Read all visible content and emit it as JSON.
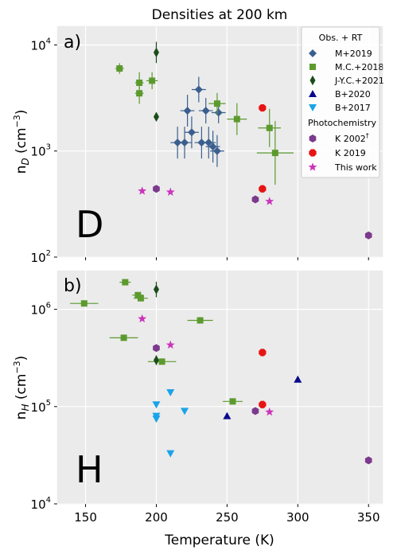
{
  "figure": {
    "title": "Densities at 200 km",
    "xlabel": "Temperature (K)"
  },
  "chart_data": [
    {
      "type": "scatter",
      "panel_label": "a)",
      "species_label": "D",
      "ylabel_main": "n",
      "ylabel_sub": "D",
      "ylabel_unit": " (cm",
      "ylabel_exp": "−3",
      "ylabel_close": ")",
      "xlim": [
        130,
        360
      ],
      "ylim": [
        100,
        15000
      ],
      "yscale": "log",
      "x_ticks": [
        150,
        200,
        250,
        300,
        350
      ],
      "y_ticks": [
        {
          "base": "10",
          "exp": "2",
          "value": 100
        },
        {
          "base": "10",
          "exp": "3",
          "value": 1000
        },
        {
          "base": "10",
          "exp": "4",
          "value": 10000
        }
      ],
      "grid": true,
      "legend_position": "top-right",
      "legend": {
        "group1_title": "Obs. + RT",
        "group2_title": "Photochemistry",
        "k2002_label": "K 2002",
        "k2002_sup": "†"
      },
      "series": [
        {
          "name": "M+2019",
          "marker": "diamond",
          "color": "#3a5f8f",
          "points": [
            {
              "x": 215,
              "y": 1200,
              "xerr": 5,
              "yerr": 0.15
            },
            {
              "x": 220,
              "y": 1200,
              "xerr": 5,
              "yerr": 0.15
            },
            {
              "x": 222,
              "y": 2400,
              "xerr": 5,
              "yerr": 0.15
            },
            {
              "x": 225,
              "y": 1500,
              "xerr": 5,
              "yerr": 0.15
            },
            {
              "x": 230,
              "y": 3800,
              "xerr": 5,
              "yerr": 0.12
            },
            {
              "x": 232,
              "y": 1200,
              "xerr": 5,
              "yerr": 0.15
            },
            {
              "x": 235,
              "y": 2400,
              "xerr": 5,
              "yerr": 0.12
            },
            {
              "x": 237,
              "y": 1200,
              "xerr": 5,
              "yerr": 0.15
            },
            {
              "x": 240,
              "y": 1100,
              "xerr": 5,
              "yerr": 0.15
            },
            {
              "x": 243,
              "y": 1000,
              "xerr": 5,
              "yerr": 0.15
            },
            {
              "x": 244,
              "y": 2300,
              "xerr": 5,
              "yerr": 0.1
            }
          ]
        },
        {
          "name": "M.C.+2018",
          "marker": "square",
          "color": "#5c9a2e",
          "points": [
            {
              "x": 174,
              "y": 6000,
              "xerr": 3,
              "yerr": 0.05
            },
            {
              "x": 188,
              "y": 4400,
              "xerr": 3,
              "yerr": 0.1
            },
            {
              "x": 188,
              "y": 3500,
              "xerr": 3,
              "yerr": 0.1
            },
            {
              "x": 197,
              "y": 4600,
              "xerr": 4,
              "yerr": 0.08
            },
            {
              "x": 243,
              "y": 2800,
              "xerr": 6,
              "yerr": 0.1
            },
            {
              "x": 257,
              "y": 2000,
              "xerr": 7,
              "yerr": 0.15
            },
            {
              "x": 280,
              "y": 1650,
              "xerr": 8,
              "yerr": 0.18
            },
            {
              "x": 284,
              "y": 960,
              "xerr": 13,
              "yerr": 0.3
            }
          ]
        },
        {
          "name": "J-Y.C.+2021",
          "marker": "thin_diamond",
          "color": "#1a4d1a",
          "points": [
            {
              "x": 200,
              "y": 8500,
              "xerr": 0,
              "yerr": 0.1
            },
            {
              "x": 200,
              "y": 2100,
              "xerr": 0,
              "yerr": 0
            }
          ]
        },
        {
          "name": "B+2020",
          "marker": "triangle_up",
          "color": "#0a0a8c",
          "points": []
        },
        {
          "name": "B+2017",
          "marker": "triangle_down",
          "color": "#1aa3e8",
          "points": []
        },
        {
          "name": "K 2002†",
          "marker": "hexagon",
          "color": "#7b3a8c",
          "points": [
            {
              "x": 200,
              "y": 440
            },
            {
              "x": 270,
              "y": 350
            },
            {
              "x": 350,
              "y": 160
            }
          ]
        },
        {
          "name": "K 2019",
          "marker": "octagon",
          "color": "#e81414",
          "points": [
            {
              "x": 275,
              "y": 2550
            },
            {
              "x": 275,
              "y": 440
            }
          ]
        },
        {
          "name": "This work",
          "marker": "star",
          "color": "#cc33bb",
          "points": [
            {
              "x": 190,
              "y": 420
            },
            {
              "x": 210,
              "y": 410
            },
            {
              "x": 280,
              "y": 335
            }
          ]
        }
      ]
    },
    {
      "type": "scatter",
      "panel_label": "b)",
      "species_label": "H",
      "ylabel_main": "n",
      "ylabel_sub": "H",
      "ylabel_unit": " (cm",
      "ylabel_exp": "−3",
      "ylabel_close": ")",
      "xlim": [
        130,
        360
      ],
      "ylim": [
        10000,
        2500000
      ],
      "yscale": "log",
      "x_ticks": [
        150,
        200,
        250,
        300,
        350
      ],
      "y_ticks": [
        {
          "base": "10",
          "exp": "4",
          "value": 10000
        },
        {
          "base": "10",
          "exp": "5",
          "value": 100000
        },
        {
          "base": "10",
          "exp": "6",
          "value": 1000000
        }
      ],
      "grid": true,
      "series": [
        {
          "name": "M.C.+2018",
          "marker": "square",
          "color": "#5c9a2e",
          "points": [
            {
              "x": 149,
              "y": 1150000,
              "xerr": 10,
              "yerr": 0
            },
            {
              "x": 178,
              "y": 1900000,
              "xerr": 4,
              "yerr": 0
            },
            {
              "x": 187,
              "y": 1400000,
              "xerr": 4,
              "yerr": 0
            },
            {
              "x": 189,
              "y": 1300000,
              "xerr": 5,
              "yerr": 0
            },
            {
              "x": 177,
              "y": 510000,
              "xerr": 10,
              "yerr": 0
            },
            {
              "x": 204,
              "y": 290000,
              "xerr": 10,
              "yerr": 0
            },
            {
              "x": 231,
              "y": 770000,
              "xerr": 9,
              "yerr": 0
            },
            {
              "x": 254,
              "y": 113000,
              "xerr": 7,
              "yerr": 0
            }
          ]
        },
        {
          "name": "J-Y.C.+2021",
          "marker": "thin_diamond",
          "color": "#1a4d1a",
          "points": [
            {
              "x": 200,
              "y": 1600000,
              "xerr": 0,
              "yerr": 0.08
            },
            {
              "x": 200,
              "y": 300000,
              "xerr": 0,
              "yerr": 0.05
            }
          ]
        },
        {
          "name": "B+2020",
          "marker": "triangle_up",
          "color": "#0a0a8c",
          "points": [
            {
              "x": 250,
              "y": 80000
            },
            {
              "x": 300,
              "y": 190000
            }
          ]
        },
        {
          "name": "B+2017",
          "marker": "triangle_down",
          "color": "#1aa3e8",
          "points": [
            {
              "x": 200,
              "y": 105000
            },
            {
              "x": 200,
              "y": 80000
            },
            {
              "x": 200,
              "y": 75000
            },
            {
              "x": 210,
              "y": 140000
            },
            {
              "x": 210,
              "y": 33000
            },
            {
              "x": 220,
              "y": 90000
            }
          ]
        },
        {
          "name": "K 2002†",
          "marker": "hexagon",
          "color": "#7b3a8c",
          "points": [
            {
              "x": 200,
              "y": 400000
            },
            {
              "x": 270,
              "y": 90000
            },
            {
              "x": 350,
              "y": 28000
            }
          ]
        },
        {
          "name": "K 2019",
          "marker": "octagon",
          "color": "#e81414",
          "points": [
            {
              "x": 275,
              "y": 360000
            },
            {
              "x": 275,
              "y": 105000
            }
          ]
        },
        {
          "name": "This work",
          "marker": "star",
          "color": "#cc33bb",
          "points": [
            {
              "x": 190,
              "y": 800000
            },
            {
              "x": 210,
              "y": 430000
            },
            {
              "x": 280,
              "y": 88000
            }
          ]
        }
      ]
    }
  ]
}
